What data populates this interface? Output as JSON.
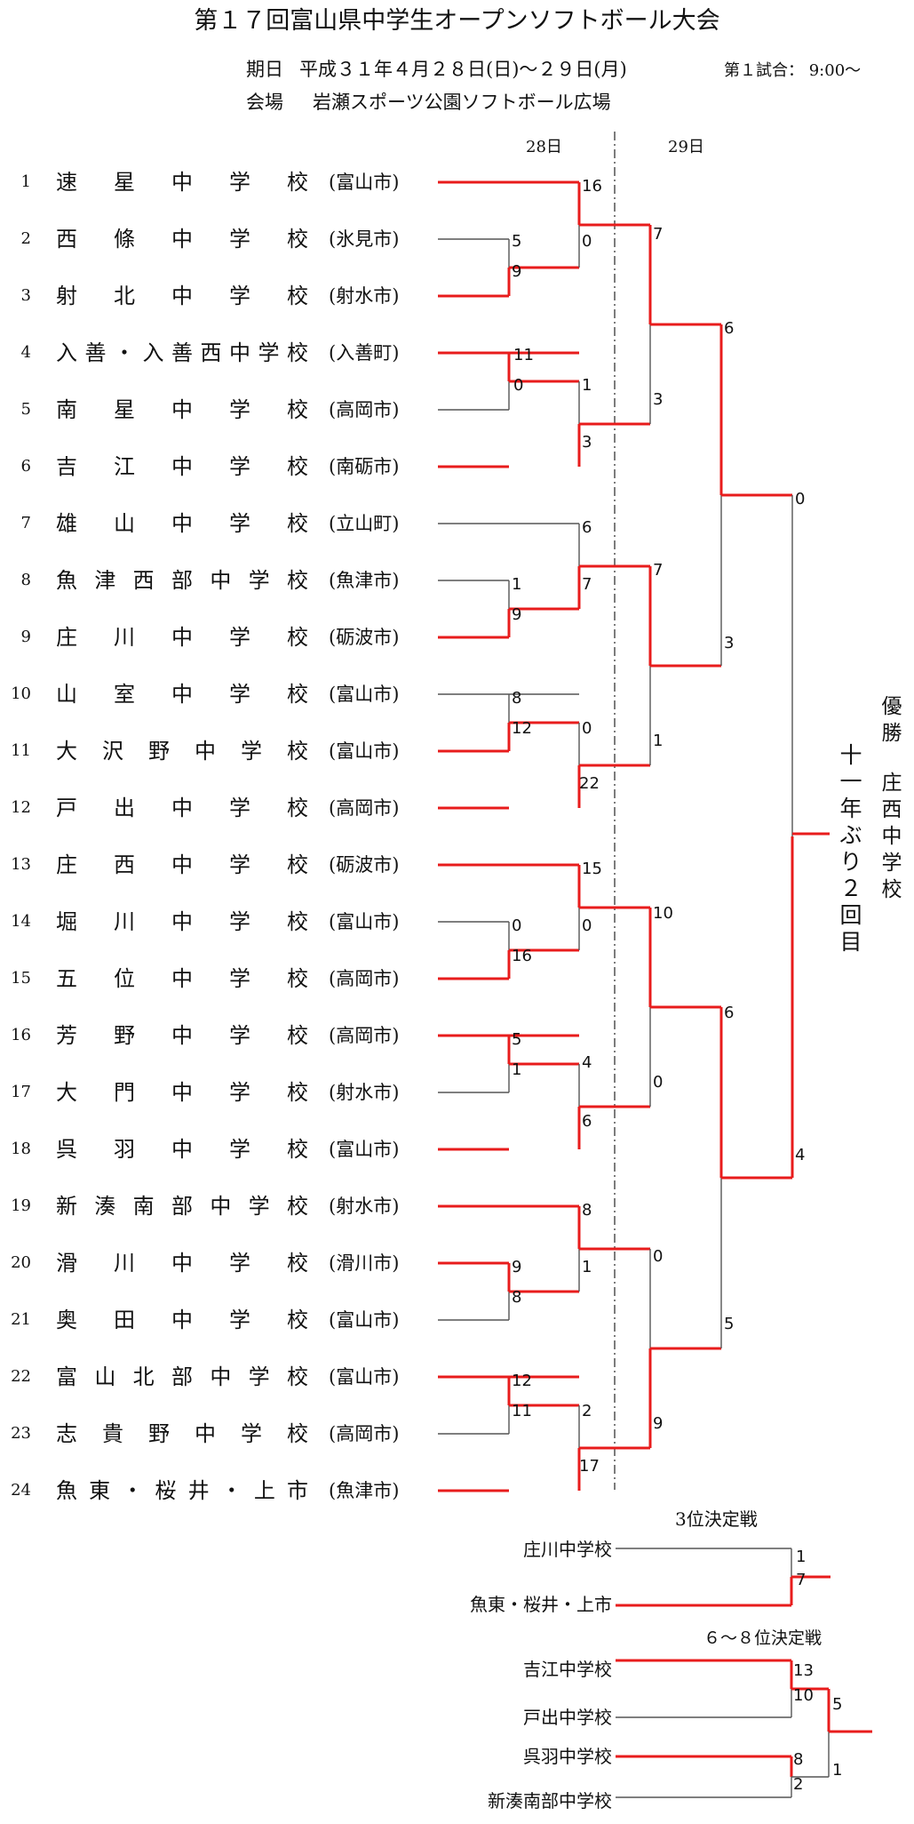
{
  "title": "第１７回富山県中学生オープンソフトボール大会",
  "info": {
    "date_label": "期日",
    "date_value": "平成３１年４月２８日(日)～２９日(月)",
    "first_match": "第１試合：  9:00～",
    "venue_label": "会場",
    "venue_value": "岩瀬スポーツ公園ソフトボール広場"
  },
  "day_labels": [
    "28日",
    "29日"
  ],
  "teams": [
    {
      "no": "1",
      "name": "速星中学校",
      "city": "(富山市)"
    },
    {
      "no": "2",
      "name": "西條中学校",
      "city": "(氷見市)"
    },
    {
      "no": "3",
      "name": "射北中学校",
      "city": "(射水市)"
    },
    {
      "no": "4",
      "name": "入善・入善西中学校",
      "city": "(入善町)"
    },
    {
      "no": "5",
      "name": "南星中学校",
      "city": "(高岡市)"
    },
    {
      "no": "6",
      "name": "吉江中学校",
      "city": "(南砺市)"
    },
    {
      "no": "7",
      "name": "雄山中学校",
      "city": "(立山町)"
    },
    {
      "no": "8",
      "name": "魚津西部中学校",
      "city": "(魚津市)"
    },
    {
      "no": "9",
      "name": "庄川中学校",
      "city": "(砺波市)"
    },
    {
      "no": "10",
      "name": "山室中学校",
      "city": "(富山市)"
    },
    {
      "no": "11",
      "name": "大沢野中学校",
      "city": "(富山市)"
    },
    {
      "no": "12",
      "name": "戸出中学校",
      "city": "(高岡市)"
    },
    {
      "no": "13",
      "name": "庄西中学校",
      "city": "(砺波市)"
    },
    {
      "no": "14",
      "name": "堀川中学校",
      "city": "(富山市)"
    },
    {
      "no": "15",
      "name": "五位中学校",
      "city": "(高岡市)"
    },
    {
      "no": "16",
      "name": "芳野中学校",
      "city": "(高岡市)"
    },
    {
      "no": "17",
      "name": "大門中学校",
      "city": "(射水市)"
    },
    {
      "no": "18",
      "name": "呉羽中学校",
      "city": "(富山市)"
    },
    {
      "no": "19",
      "name": "新湊南部中学校",
      "city": "(射水市)"
    },
    {
      "no": "20",
      "name": "滑川中学校",
      "city": "(滑川市)"
    },
    {
      "no": "21",
      "name": "奥田中学校",
      "city": "(富山市)"
    },
    {
      "no": "22",
      "name": "富山北部中学校",
      "city": "(富山市)"
    },
    {
      "no": "23",
      "name": "志貴野中学校",
      "city": "(高岡市)"
    },
    {
      "no": "24",
      "name": "魚東・桜井・上市",
      "city": "(魚津市)"
    }
  ],
  "scores": [
    "16",
    "5",
    "0",
    "9",
    "11",
    "0",
    "1",
    "3",
    "6",
    "1",
    "7",
    "9",
    "8",
    "12",
    "0",
    "22",
    "15",
    "0",
    "0",
    "16",
    "5",
    "1",
    "4",
    "6",
    "8",
    "9",
    "1",
    "8",
    "12",
    "11",
    "2",
    "17",
    "7",
    "3",
    "7",
    "1",
    "10",
    "0",
    "0",
    "9",
    "6",
    "3",
    "6",
    "5",
    "0",
    "4",
    "1",
    "7",
    "13",
    "10",
    "8",
    "2",
    "5",
    "1"
  ],
  "champion": {
    "label": "優勝",
    "team": "庄西中学校",
    "note": "十一年ぶり２回目"
  },
  "third_place": {
    "title": "3位決定戦",
    "teams": [
      "庄川中学校",
      "魚東・桜井・上市"
    ]
  },
  "placement": {
    "title": "６～８位決定戦",
    "teams": [
      "吉江中学校",
      "戸出中学校",
      "呉羽中学校",
      "新湊南部中学校"
    ]
  },
  "colors": {
    "winner_line": "#e81c1c",
    "line": "#555555",
    "divider": "#444444"
  }
}
